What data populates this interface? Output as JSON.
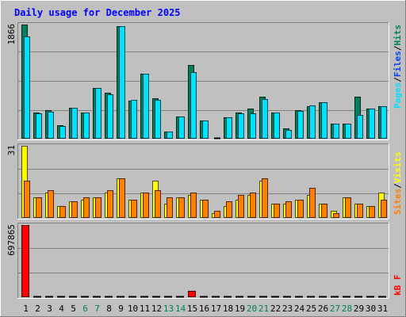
{
  "title": "Daily usage for December 2025",
  "colors": {
    "background": "#c0c0c0",
    "title": "#0000ff",
    "hits": "#00805c",
    "files": "#0040ff",
    "pages": "#00e0ff",
    "visits": "#ffff00",
    "sites": "#ff8000",
    "kbytes": "#ff0000",
    "day_normal": "#000000",
    "day_weekend": "#00805c"
  },
  "chart_data": [
    {
      "type": "bar",
      "panel": "hits-files-pages",
      "max_label": "1866",
      "ylim": [
        0,
        1866
      ],
      "legend": [
        "Pages",
        "/",
        "Files",
        "/",
        "Hits"
      ],
      "categories": [
        "1",
        "2",
        "3",
        "4",
        "5",
        "6",
        "7",
        "8",
        "9",
        "10",
        "11",
        "12",
        "13",
        "14",
        "15",
        "16",
        "17",
        "18",
        "19",
        "20",
        "21",
        "22",
        "23",
        "24",
        "25",
        "26",
        "27",
        "28",
        "29",
        "30",
        "31"
      ],
      "series": [
        {
          "name": "Hits",
          "values": [
            1866,
            434,
            470,
            223,
            507,
            423,
            835,
            752,
            1836,
            627,
            1061,
            666,
            118,
            361,
            1200,
            301,
            10,
            355,
            434,
            489,
            688,
            434,
            169,
            470,
            532,
            597,
            246,
            246,
            688,
            493,
            535
          ]
        },
        {
          "name": "Pages",
          "values": [
            1677,
            418,
            444,
            208,
            507,
            423,
            835,
            726,
            1836,
            632,
            1061,
            632,
            118,
            361,
            1086,
            301,
            0,
            344,
            418,
            415,
            647,
            434,
            149,
            459,
            542,
            597,
            246,
            246,
            395,
            493,
            535
          ]
        }
      ]
    },
    {
      "type": "bar",
      "panel": "visits-sites",
      "max_label": "31",
      "ylim": [
        0,
        31
      ],
      "legend": [
        "Sites",
        "/",
        "Visits"
      ],
      "categories": [
        "1",
        "2",
        "3",
        "4",
        "5",
        "6",
        "7",
        "8",
        "9",
        "10",
        "11",
        "12",
        "13",
        "14",
        "15",
        "16",
        "17",
        "18",
        "19",
        "20",
        "21",
        "22",
        "23",
        "24",
        "25",
        "26",
        "27",
        "28",
        "29",
        "30",
        "31"
      ],
      "series": [
        {
          "name": "Visits",
          "values": [
            31,
            9,
            11,
            5,
            7,
            8,
            9,
            11,
            17,
            8,
            11,
            16,
            6,
            9,
            10,
            8,
            2,
            5,
            8,
            10,
            16,
            6,
            6,
            8,
            10,
            6,
            3,
            9,
            6,
            5,
            11
          ]
        },
        {
          "name": "Sites",
          "values": [
            16,
            9,
            12,
            5,
            7,
            9,
            9,
            12,
            17,
            8,
            11,
            12,
            9,
            9,
            11,
            8,
            3,
            7,
            10,
            11,
            17,
            6,
            7,
            8,
            13,
            6,
            2,
            9,
            6,
            5,
            8
          ]
        }
      ]
    },
    {
      "type": "bar",
      "panel": "kbytes",
      "max_label": "697865",
      "ylim": [
        0,
        697865
      ],
      "legend": [
        "kB",
        "F"
      ],
      "categories": [
        "1",
        "2",
        "3",
        "4",
        "5",
        "6",
        "7",
        "8",
        "9",
        "10",
        "11",
        "12",
        "13",
        "14",
        "15",
        "16",
        "17",
        "18",
        "19",
        "20",
        "21",
        "22",
        "23",
        "24",
        "25",
        "26",
        "27",
        "28",
        "29",
        "30",
        "31"
      ],
      "series": [
        {
          "name": "kB F",
          "values": [
            697865,
            0,
            0,
            0,
            0,
            0,
            0,
            0,
            0,
            0,
            0,
            0,
            0,
            0,
            58000,
            0,
            0,
            0,
            0,
            0,
            0,
            0,
            0,
            0,
            0,
            0,
            0,
            0,
            0,
            0,
            0
          ]
        }
      ]
    }
  ],
  "weekend_days": [
    "6",
    "7",
    "13",
    "14",
    "20",
    "21",
    "27",
    "28"
  ]
}
